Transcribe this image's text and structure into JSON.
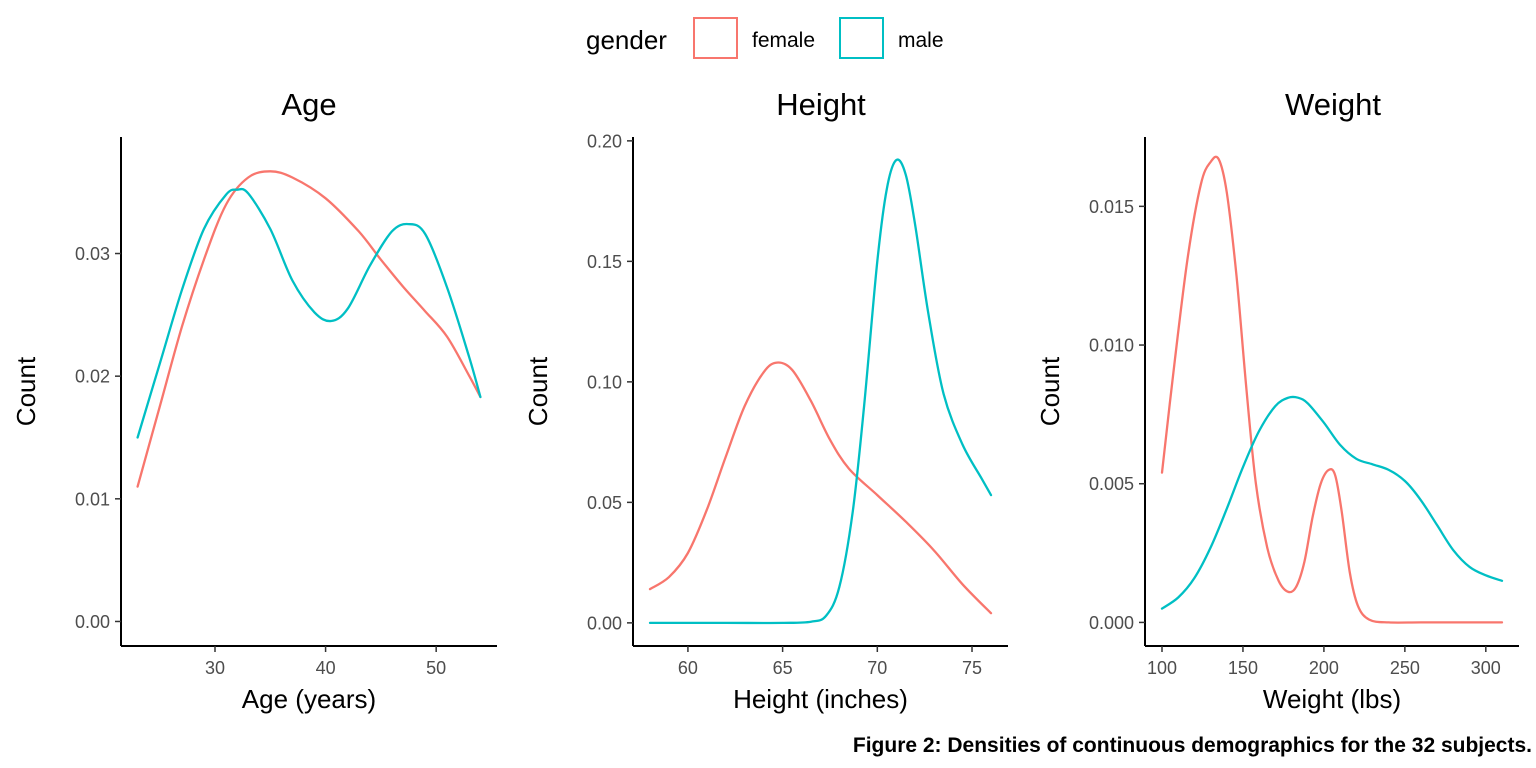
{
  "legend": {
    "title": "gender",
    "items": [
      {
        "label": "female",
        "color": "#F8766D"
      },
      {
        "label": "male",
        "color": "#00BFC4"
      }
    ]
  },
  "caption": "Figure 2: Densities of continuous demographics for the 32 subjects.",
  "chart_data": [
    {
      "type": "line",
      "title": "Age",
      "xlabel": "Age (years)",
      "ylabel": "Count",
      "xlim": [
        21.5,
        55.5
      ],
      "ylim": [
        -0.002,
        0.0395
      ],
      "xticks": [
        30,
        40,
        50
      ],
      "xtick_labels": [
        "30",
        "40",
        "50"
      ],
      "yticks": [
        0,
        0.01,
        0.02,
        0.03
      ],
      "ytick_labels": [
        "0.00",
        "0.01",
        "0.02",
        "0.03"
      ],
      "series": [
        {
          "name": "female",
          "color": "#F8766D",
          "x": [
            23,
            25,
            27,
            29,
            31,
            33,
            35,
            37,
            40,
            43,
            45,
            47,
            49,
            51,
            53,
            54
          ],
          "y": [
            0.011,
            0.0175,
            0.024,
            0.0295,
            0.034,
            0.0362,
            0.0367,
            0.0362,
            0.0345,
            0.0318,
            0.0295,
            0.0273,
            0.0253,
            0.0232,
            0.02,
            0.0183
          ]
        },
        {
          "name": "male",
          "color": "#00BFC4",
          "x": [
            23,
            25,
            27,
            29,
            31,
            32,
            33,
            35,
            37,
            39,
            40.5,
            42,
            44,
            46,
            47.5,
            49,
            51,
            53,
            54
          ],
          "y": [
            0.015,
            0.021,
            0.027,
            0.032,
            0.0348,
            0.0352,
            0.0349,
            0.032,
            0.0278,
            0.0252,
            0.0245,
            0.0255,
            0.029,
            0.0318,
            0.0324,
            0.0316,
            0.0272,
            0.0215,
            0.0183
          ]
        }
      ]
    },
    {
      "type": "line",
      "title": "Height",
      "xlabel": "Height (inches)",
      "ylabel": "Count",
      "xlim": [
        57.1,
        76.9
      ],
      "ylim": [
        -0.0096,
        0.2016
      ],
      "xticks": [
        60,
        65,
        70,
        75
      ],
      "xtick_labels": [
        "60",
        "65",
        "70",
        "75"
      ],
      "yticks": [
        0,
        0.05,
        0.1,
        0.15,
        0.2
      ],
      "ytick_labels": [
        "0.00",
        "0.05",
        "0.10",
        "0.15",
        "0.20"
      ],
      "series": [
        {
          "name": "female",
          "color": "#F8766D",
          "x": [
            58,
            59,
            60,
            61,
            62,
            63,
            64,
            64.7,
            65.5,
            66.5,
            67.5,
            68.5,
            70,
            71.5,
            73,
            74.5,
            76
          ],
          "y": [
            0.014,
            0.019,
            0.029,
            0.047,
            0.069,
            0.09,
            0.104,
            0.108,
            0.105,
            0.092,
            0.076,
            0.064,
            0.053,
            0.042,
            0.03,
            0.016,
            0.004
          ]
        },
        {
          "name": "male",
          "color": "#00BFC4",
          "x": [
            58,
            62,
            65,
            66.5,
            67.3,
            68,
            68.7,
            69.3,
            70,
            70.5,
            71,
            71.5,
            72,
            72.7,
            73.5,
            74.5,
            75.5,
            76
          ],
          "y": [
            0,
            0,
            0,
            0.0005,
            0.003,
            0.015,
            0.046,
            0.09,
            0.15,
            0.18,
            0.192,
            0.186,
            0.165,
            0.128,
            0.095,
            0.074,
            0.06,
            0.053
          ]
        }
      ]
    },
    {
      "type": "line",
      "title": "Weight",
      "xlabel": "Weight (lbs)",
      "ylabel": "Count",
      "xlim": [
        89.5,
        320.5
      ],
      "ylim": [
        -0.00085,
        0.0175
      ],
      "xticks": [
        100,
        150,
        200,
        250,
        300
      ],
      "xtick_labels": [
        "100",
        "150",
        "200",
        "250",
        "300"
      ],
      "yticks": [
        0,
        0.005,
        0.01,
        0.015
      ],
      "ytick_labels": [
        "0.000",
        "0.005",
        "0.010",
        "0.015"
      ],
      "series": [
        {
          "name": "female",
          "color": "#F8766D",
          "x": [
            100,
            108,
            116,
            124,
            130,
            135,
            140,
            146,
            152,
            158,
            165,
            172,
            178,
            183,
            188,
            193,
            198,
            203,
            207,
            211,
            216,
            221,
            228,
            240,
            260,
            290,
            310
          ],
          "y": [
            0.0054,
            0.0095,
            0.0132,
            0.0158,
            0.0166,
            0.0167,
            0.0155,
            0.0125,
            0.0085,
            0.005,
            0.0027,
            0.0015,
            0.0011,
            0.0013,
            0.0022,
            0.0038,
            0.005,
            0.0055,
            0.0053,
            0.004,
            0.0018,
            0.0006,
            0.0001,
            0,
            0,
            0,
            0
          ]
        },
        {
          "name": "male",
          "color": "#00BFC4",
          "x": [
            100,
            110,
            120,
            130,
            140,
            150,
            160,
            170,
            178,
            184,
            190,
            200,
            210,
            220,
            230,
            240,
            250,
            260,
            270,
            280,
            290,
            300,
            310
          ],
          "y": [
            0.0005,
            0.0009,
            0.0016,
            0.0027,
            0.0041,
            0.0056,
            0.0069,
            0.0078,
            0.0081,
            0.0081,
            0.0079,
            0.0072,
            0.0064,
            0.0059,
            0.0057,
            0.0055,
            0.0051,
            0.0044,
            0.0035,
            0.0026,
            0.002,
            0.0017,
            0.0015
          ]
        }
      ]
    }
  ]
}
